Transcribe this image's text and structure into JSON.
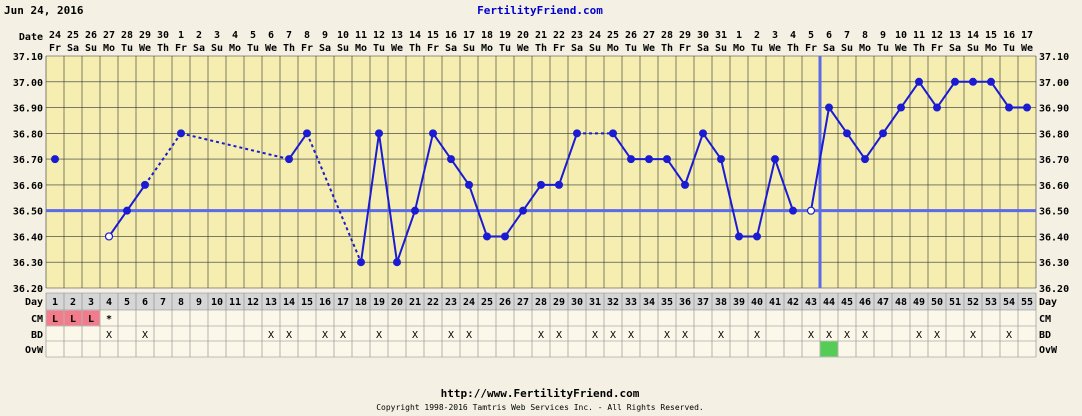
{
  "header": {
    "date": "Jun 24, 2016",
    "site": "FertilityFriend.com"
  },
  "footer": {
    "url": "http://www.FertilityFriend.com",
    "copyright": "Copyright 1998-2016 Tamtris Web Services Inc. - All Rights Reserved."
  },
  "row_labels": {
    "date": "Date",
    "day": "Day",
    "cm": "CM",
    "bd": "BD",
    "ovw": "OvW"
  },
  "colors": {
    "background": "#f4f1e4",
    "plot_background": "#f5eeb0",
    "grid": "#333333",
    "line": "#1b1bd4",
    "coverline": "#5a6ae8",
    "cm_fill": "#f07c8c",
    "ovw_fill": "#55cc55"
  },
  "chart_data": {
    "type": "line",
    "title": "",
    "ylabel": "",
    "ylim": [
      36.2,
      37.1
    ],
    "yticks": [
      "36.20",
      "36.30",
      "36.40",
      "36.50",
      "36.60",
      "36.70",
      "36.80",
      "36.90",
      "37.00",
      "37.10"
    ],
    "coverline": 36.5,
    "ovulation_day": 43,
    "dates": [
      "24",
      "25",
      "26",
      "27",
      "28",
      "29",
      "30",
      "1",
      "2",
      "3",
      "4",
      "5",
      "6",
      "7",
      "8",
      "9",
      "10",
      "11",
      "12",
      "13",
      "14",
      "15",
      "16",
      "17",
      "18",
      "19",
      "20",
      "21",
      "22",
      "23",
      "24",
      "25",
      "26",
      "27",
      "28",
      "29",
      "30",
      "31",
      "1",
      "2",
      "3",
      "4",
      "5",
      "6",
      "7",
      "8",
      "9",
      "10",
      "11",
      "12",
      "13",
      "14",
      "15",
      "16",
      "17"
    ],
    "weekdays": [
      "Fr",
      "Sa",
      "Su",
      "Mo",
      "Tu",
      "We",
      "Th",
      "Fr",
      "Sa",
      "Su",
      "Mo",
      "Tu",
      "We",
      "Th",
      "Fr",
      "Sa",
      "Su",
      "Mo",
      "Tu",
      "We",
      "Th",
      "Fr",
      "Sa",
      "Su",
      "Mo",
      "Tu",
      "We",
      "Th",
      "Fr",
      "Sa",
      "Su",
      "Mo",
      "Tu",
      "We",
      "Th",
      "Fr",
      "Sa",
      "Su",
      "Mo",
      "Tu",
      "We",
      "Th",
      "Fr",
      "Sa",
      "Su",
      "Mo",
      "Tu",
      "We",
      "Th",
      "Fr",
      "Sa",
      "Su",
      "Mo",
      "Tu",
      "We"
    ],
    "days": [
      1,
      2,
      3,
      4,
      5,
      6,
      7,
      8,
      9,
      10,
      11,
      12,
      13,
      14,
      15,
      16,
      17,
      18,
      19,
      20,
      21,
      22,
      23,
      24,
      25,
      26,
      27,
      28,
      29,
      30,
      31,
      32,
      33,
      34,
      35,
      36,
      37,
      38,
      39,
      40,
      41,
      42,
      43,
      44,
      45,
      46,
      47,
      48,
      49,
      50,
      51,
      52,
      53,
      54,
      55
    ],
    "temperatures": [
      {
        "day": 1,
        "value": 36.7
      },
      {
        "day": 4,
        "value": 36.4,
        "open": true
      },
      {
        "day": 5,
        "value": 36.5
      },
      {
        "day": 6,
        "value": 36.6
      },
      {
        "day": 8,
        "value": 36.8
      },
      {
        "day": 14,
        "value": 36.7
      },
      {
        "day": 15,
        "value": 36.8
      },
      {
        "day": 18,
        "value": 36.3
      },
      {
        "day": 19,
        "value": 36.8
      },
      {
        "day": 20,
        "value": 36.3
      },
      {
        "day": 21,
        "value": 36.5
      },
      {
        "day": 22,
        "value": 36.8
      },
      {
        "day": 23,
        "value": 36.7
      },
      {
        "day": 24,
        "value": 36.6
      },
      {
        "day": 25,
        "value": 36.4
      },
      {
        "day": 26,
        "value": 36.4
      },
      {
        "day": 27,
        "value": 36.5
      },
      {
        "day": 28,
        "value": 36.6
      },
      {
        "day": 29,
        "value": 36.6
      },
      {
        "day": 30,
        "value": 36.8
      },
      {
        "day": 32,
        "value": 36.8
      },
      {
        "day": 33,
        "value": 36.7
      },
      {
        "day": 34,
        "value": 36.7
      },
      {
        "day": 35,
        "value": 36.7
      },
      {
        "day": 36,
        "value": 36.6
      },
      {
        "day": 37,
        "value": 36.8
      },
      {
        "day": 38,
        "value": 36.7
      },
      {
        "day": 39,
        "value": 36.4
      },
      {
        "day": 40,
        "value": 36.4
      },
      {
        "day": 41,
        "value": 36.7
      },
      {
        "day": 42,
        "value": 36.5
      },
      {
        "day": 43,
        "value": 36.5,
        "open": true
      },
      {
        "day": 44,
        "value": 36.9
      },
      {
        "day": 45,
        "value": 36.8
      },
      {
        "day": 46,
        "value": 36.7
      },
      {
        "day": 47,
        "value": 36.8
      },
      {
        "day": 48,
        "value": 36.9
      },
      {
        "day": 49,
        "value": 37.0
      },
      {
        "day": 50,
        "value": 36.9
      },
      {
        "day": 51,
        "value": 37.0
      },
      {
        "day": 52,
        "value": 37.0
      },
      {
        "day": 53,
        "value": 37.0
      },
      {
        "day": 54,
        "value": 36.9
      },
      {
        "day": 55,
        "value": 36.9
      }
    ],
    "segments": [
      {
        "from": 4,
        "to": 5,
        "style": "solid"
      },
      {
        "from": 5,
        "to": 6,
        "style": "solid"
      },
      {
        "from": 6,
        "to": 8,
        "style": "dashed"
      },
      {
        "from": 8,
        "to": 14,
        "style": "dashed"
      },
      {
        "from": 14,
        "to": 15,
        "style": "solid"
      },
      {
        "from": 15,
        "to": 18,
        "style": "dashed"
      },
      {
        "from": 18,
        "to": 19,
        "style": "solid"
      },
      {
        "from": 19,
        "to": 20,
        "style": "solid"
      },
      {
        "from": 20,
        "to": 21,
        "style": "solid"
      },
      {
        "from": 21,
        "to": 22,
        "style": "solid"
      },
      {
        "from": 22,
        "to": 23,
        "style": "solid"
      },
      {
        "from": 23,
        "to": 24,
        "style": "solid"
      },
      {
        "from": 24,
        "to": 25,
        "style": "solid"
      },
      {
        "from": 25,
        "to": 26,
        "style": "solid"
      },
      {
        "from": 26,
        "to": 27,
        "style": "solid"
      },
      {
        "from": 27,
        "to": 28,
        "style": "solid"
      },
      {
        "from": 28,
        "to": 29,
        "style": "solid"
      },
      {
        "from": 29,
        "to": 30,
        "style": "solid"
      },
      {
        "from": 30,
        "to": 32,
        "style": "dashed"
      },
      {
        "from": 32,
        "to": 33,
        "style": "solid"
      },
      {
        "from": 33,
        "to": 34,
        "style": "solid"
      },
      {
        "from": 34,
        "to": 35,
        "style": "solid"
      },
      {
        "from": 35,
        "to": 36,
        "style": "solid"
      },
      {
        "from": 36,
        "to": 37,
        "style": "solid"
      },
      {
        "from": 37,
        "to": 38,
        "style": "solid"
      },
      {
        "from": 38,
        "to": 39,
        "style": "solid"
      },
      {
        "from": 39,
        "to": 40,
        "style": "solid"
      },
      {
        "from": 40,
        "to": 41,
        "style": "solid"
      },
      {
        "from": 41,
        "to": 42,
        "style": "solid"
      },
      {
        "from": 43,
        "to": 44,
        "style": "solid"
      },
      {
        "from": 44,
        "to": 45,
        "style": "solid"
      },
      {
        "from": 45,
        "to": 46,
        "style": "solid"
      },
      {
        "from": 46,
        "to": 47,
        "style": "solid"
      },
      {
        "from": 47,
        "to": 48,
        "style": "solid"
      },
      {
        "from": 48,
        "to": 49,
        "style": "solid"
      },
      {
        "from": 49,
        "to": 50,
        "style": "solid"
      },
      {
        "from": 50,
        "to": 51,
        "style": "solid"
      },
      {
        "from": 51,
        "to": 52,
        "style": "solid"
      },
      {
        "from": 52,
        "to": 53,
        "style": "solid"
      },
      {
        "from": 53,
        "to": 54,
        "style": "solid"
      },
      {
        "from": 54,
        "to": 55,
        "style": "solid"
      }
    ],
    "cm": [
      {
        "day": 1,
        "mark": "L"
      },
      {
        "day": 2,
        "mark": "L"
      },
      {
        "day": 3,
        "mark": "L"
      },
      {
        "day": 4,
        "mark": "*"
      }
    ],
    "bd": [
      4,
      6,
      13,
      14,
      16,
      17,
      19,
      21,
      23,
      24,
      28,
      29,
      31,
      32,
      33,
      35,
      36,
      38,
      40,
      43,
      44,
      45,
      46,
      49,
      50,
      52,
      54
    ],
    "ovw": [
      44
    ]
  }
}
